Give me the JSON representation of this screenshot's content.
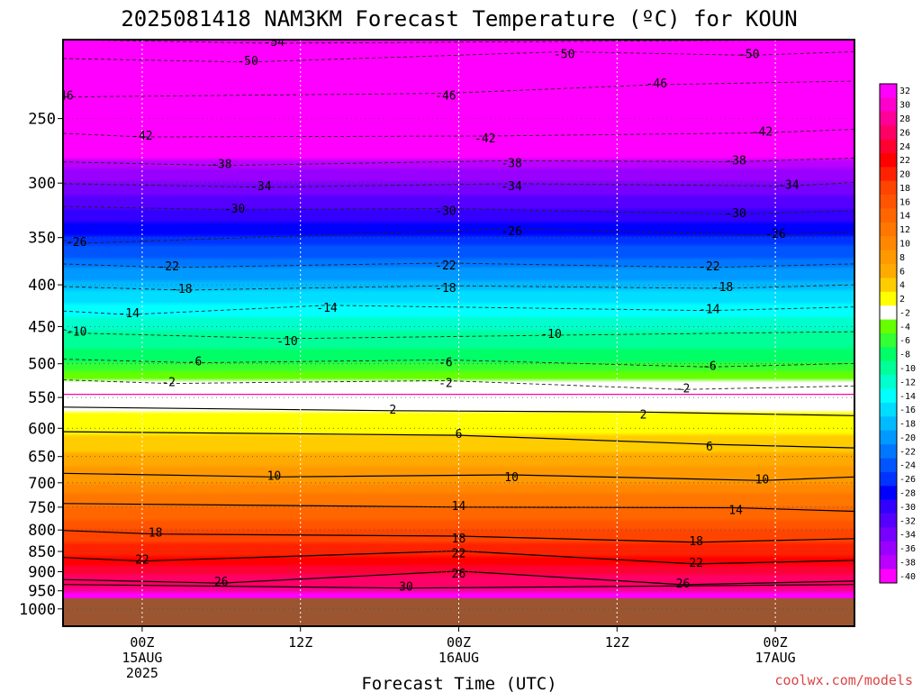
{
  "chart_data": {
    "type": "heatmap",
    "title": "2025081418 NAM3KM Forecast Temperature (ºC) for KOUN",
    "xlabel": "Forecast Time (UTC)",
    "ylabel": "",
    "credit": "coolwx.com/models",
    "x_ticks": [
      {
        "label": [
          "00Z",
          "15AUG",
          "2025"
        ]
      },
      {
        "label": [
          "12Z"
        ]
      },
      {
        "label": [
          "00Z",
          "16AUG"
        ]
      },
      {
        "label": [
          "12Z"
        ]
      },
      {
        "label": [
          "00Z",
          "17AUG"
        ]
      }
    ],
    "x_tick_hours": [
      0,
      12,
      24,
      36,
      48
    ],
    "x_range_hours": [
      -6,
      54
    ],
    "y_axis": {
      "unit": "hPa",
      "scale": "log",
      "range": [
        1050,
        200
      ],
      "ticks": [
        250,
        300,
        350,
        400,
        450,
        500,
        550,
        600,
        650,
        700,
        750,
        800,
        850,
        900,
        950,
        1000
      ]
    },
    "surface_pressure_hPa": 970,
    "colorbar": {
      "labels": [
        "32",
        "30",
        "28",
        "26",
        "24",
        "22",
        "20",
        "18",
        "16",
        "14",
        "12",
        "10",
        "8",
        "6",
        "4",
        "2",
        "-2",
        "-4",
        "-6",
        "-8",
        "-10",
        "-12",
        "-14",
        "-16",
        "-18",
        "-20",
        "-22",
        "-24",
        "-26",
        "-28",
        "-30",
        "-32",
        "-34",
        "-36",
        "-38",
        "-40"
      ],
      "colors": [
        "#ff00ff",
        "#ff00cc",
        "#ff0099",
        "#ff0066",
        "#ff0033",
        "#ff0000",
        "#ff2200",
        "#ff4400",
        "#ff5500",
        "#ff6600",
        "#ff7700",
        "#ff8800",
        "#ff9900",
        "#ffaa00",
        "#ffcc00",
        "#ffff00",
        "#ffffff",
        "#66ff00",
        "#33ff33",
        "#00ff66",
        "#00ff99",
        "#00ffcc",
        "#00ffff",
        "#00ddff",
        "#00bbff",
        "#0099ff",
        "#0077ff",
        "#0055ff",
        "#0033ff",
        "#0000ff",
        "#3300ff",
        "#5500ff",
        "#7700ff",
        "#9900ff",
        "#bb00ff",
        "#ff00ff"
      ]
    },
    "temperature_profile": [
      {
        "p": 1000,
        "t": 34
      },
      {
        "p": 970,
        "t": 31
      },
      {
        "p": 950,
        "t": 29
      },
      {
        "p": 900,
        "t": 25
      },
      {
        "p": 850,
        "t": 21.5
      },
      {
        "p": 800,
        "t": 18
      },
      {
        "p": 750,
        "t": 14
      },
      {
        "p": 700,
        "t": 10
      },
      {
        "p": 650,
        "t": 6.5
      },
      {
        "p": 600,
        "t": 3.5
      },
      {
        "p": 560,
        "t": 1
      },
      {
        "p": 545,
        "t": 0
      },
      {
        "p": 530,
        "t": -1.5
      },
      {
        "p": 500,
        "t": -6
      },
      {
        "p": 450,
        "t": -10.5
      },
      {
        "p": 400,
        "t": -17
      },
      {
        "p": 350,
        "t": -25.5
      },
      {
        "p": 300,
        "t": -34
      },
      {
        "p": 250,
        "t": -44
      },
      {
        "p": 200,
        "t": -56
      }
    ],
    "contour_labels": [
      {
        "text": "-54",
        "x": 10,
        "p": 201
      },
      {
        "text": "-50",
        "x": 8,
        "p": 212
      },
      {
        "text": "-50",
        "x": 32,
        "p": 208
      },
      {
        "text": "-50",
        "x": 46,
        "p": 208
      },
      {
        "text": "-46",
        "x": -6,
        "p": 234
      },
      {
        "text": "-46",
        "x": 23,
        "p": 234
      },
      {
        "text": "-46",
        "x": 39,
        "p": 226
      },
      {
        "text": "-42",
        "x": 0,
        "p": 262
      },
      {
        "text": "-42",
        "x": 26,
        "p": 264
      },
      {
        "text": "-42",
        "x": 47,
        "p": 259
      },
      {
        "text": "-38",
        "x": 6,
        "p": 284
      },
      {
        "text": "-38",
        "x": 28,
        "p": 283
      },
      {
        "text": "-38",
        "x": 45,
        "p": 281
      },
      {
        "text": "-34",
        "x": 9,
        "p": 302
      },
      {
        "text": "-34",
        "x": 28,
        "p": 302
      },
      {
        "text": "-34",
        "x": 49,
        "p": 301
      },
      {
        "text": "-30",
        "x": 7,
        "p": 322
      },
      {
        "text": "-30",
        "x": 23,
        "p": 324
      },
      {
        "text": "-30",
        "x": 45,
        "p": 326
      },
      {
        "text": "-26",
        "x": -5,
        "p": 354
      },
      {
        "text": "-26",
        "x": 28,
        "p": 343
      },
      {
        "text": "-26",
        "x": 48,
        "p": 346
      },
      {
        "text": "-22",
        "x": 2,
        "p": 379
      },
      {
        "text": "-22",
        "x": 23,
        "p": 378
      },
      {
        "text": "-22",
        "x": 43,
        "p": 379
      },
      {
        "text": "-18",
        "x": 3,
        "p": 404
      },
      {
        "text": "-18",
        "x": 23,
        "p": 403
      },
      {
        "text": "-18",
        "x": 44,
        "p": 402
      },
      {
        "text": "-14",
        "x": -1,
        "p": 433
      },
      {
        "text": "-14",
        "x": 14,
        "p": 426
      },
      {
        "text": "-14",
        "x": 43,
        "p": 428
      },
      {
        "text": "-10",
        "x": -5,
        "p": 456
      },
      {
        "text": "-10",
        "x": 11,
        "p": 468
      },
      {
        "text": "-10",
        "x": 31,
        "p": 459
      },
      {
        "text": "-6",
        "x": 4,
        "p": 496
      },
      {
        "text": "-6",
        "x": 23,
        "p": 497
      },
      {
        "text": "-6",
        "x": 43,
        "p": 502
      },
      {
        "text": "-2",
        "x": 2,
        "p": 526
      },
      {
        "text": "-2",
        "x": 23,
        "p": 527
      },
      {
        "text": "-2",
        "x": 41,
        "p": 535
      },
      {
        "text": "2",
        "x": 19,
        "p": 568
      },
      {
        "text": "2",
        "x": 38,
        "p": 576
      },
      {
        "text": "6",
        "x": 24,
        "p": 609
      },
      {
        "text": "6",
        "x": 43,
        "p": 631
      },
      {
        "text": "10",
        "x": 10,
        "p": 685
      },
      {
        "text": "10",
        "x": 28,
        "p": 688
      },
      {
        "text": "10",
        "x": 47,
        "p": 692
      },
      {
        "text": "14",
        "x": 24,
        "p": 746
      },
      {
        "text": "14",
        "x": 45,
        "p": 755
      },
      {
        "text": "18",
        "x": 1,
        "p": 805
      },
      {
        "text": "18",
        "x": 24,
        "p": 818
      },
      {
        "text": "18",
        "x": 42,
        "p": 824
      },
      {
        "text": "22",
        "x": 0,
        "p": 869
      },
      {
        "text": "22",
        "x": 24,
        "p": 853
      },
      {
        "text": "22",
        "x": 42,
        "p": 876
      },
      {
        "text": "26",
        "x": 6,
        "p": 925
      },
      {
        "text": "26",
        "x": 24,
        "p": 903
      },
      {
        "text": "26",
        "x": 41,
        "p": 929
      },
      {
        "text": "30",
        "x": 20,
        "p": 938
      }
    ]
  }
}
